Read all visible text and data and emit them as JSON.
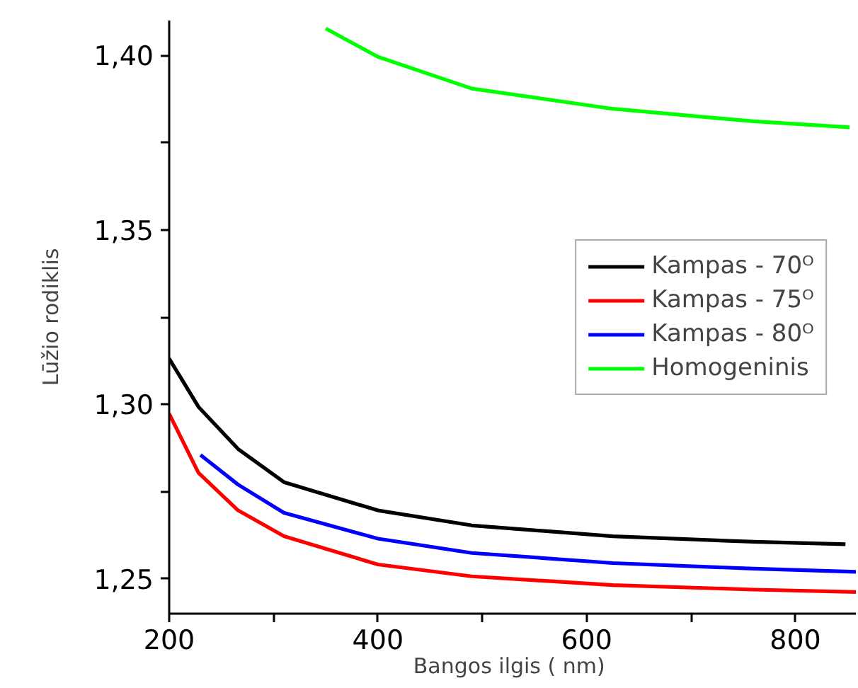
{
  "chart_data": {
    "type": "line",
    "xlabel": "Bangos ilgis (  nm)",
    "ylabel": "Lūžio rodiklis",
    "xlim": [
      200,
      858
    ],
    "ylim": [
      1.24,
      1.41
    ],
    "xticks": [
      200,
      {
        "value": 300,
        "label": null
      },
      400,
      {
        "value": 500,
        "label": null
      },
      600,
      {
        "value": 700,
        "label": null
      },
      800
    ],
    "yticks": [
      {
        "value": 1.25,
        "label": "1,25"
      },
      {
        "value": 1.275,
        "label": null
      },
      {
        "value": 1.3,
        "label": "1,30"
      },
      {
        "value": 1.325,
        "label": null
      },
      {
        "value": 1.35,
        "label": "1,35"
      },
      {
        "value": 1.375,
        "label": null
      },
      {
        "value": 1.4,
        "label": "1,40"
      }
    ],
    "grid": false,
    "legend": "right",
    "marker": "none",
    "line_style": "solid",
    "series": [
      {
        "name": "Kampas - 70ᴼ",
        "color": "#000000",
        "x": [
          200,
          228,
          266,
          310,
          400,
          490,
          625,
          760,
          848
        ],
        "values": [
          1.3131,
          1.2993,
          1.2872,
          1.2777,
          1.2696,
          1.2653,
          1.2622,
          1.2606,
          1.2599
        ]
      },
      {
        "name": "Kampas - 75ᴼ",
        "color": "#ff0000",
        "x": [
          200,
          228,
          266,
          310,
          400,
          490,
          625,
          760,
          858
        ],
        "values": [
          1.2973,
          1.2804,
          1.2696,
          1.2622,
          1.2541,
          1.2507,
          1.2482,
          1.2469,
          1.2462
        ]
      },
      {
        "name": "Kampas - 80ᴼ",
        "color": "#0000ff",
        "x": [
          230,
          266,
          310,
          400,
          490,
          625,
          760,
          858
        ],
        "values": [
          1.2855,
          1.277,
          1.2689,
          1.2615,
          1.2574,
          1.2545,
          1.2529,
          1.252
        ]
      },
      {
        "name": "Homogeninis",
        "color": "#00ff00",
        "x": [
          350,
          400,
          490,
          625,
          760,
          852
        ],
        "values": [
          1.4077,
          1.3996,
          1.3905,
          1.3847,
          1.3811,
          1.3794
        ]
      }
    ]
  }
}
